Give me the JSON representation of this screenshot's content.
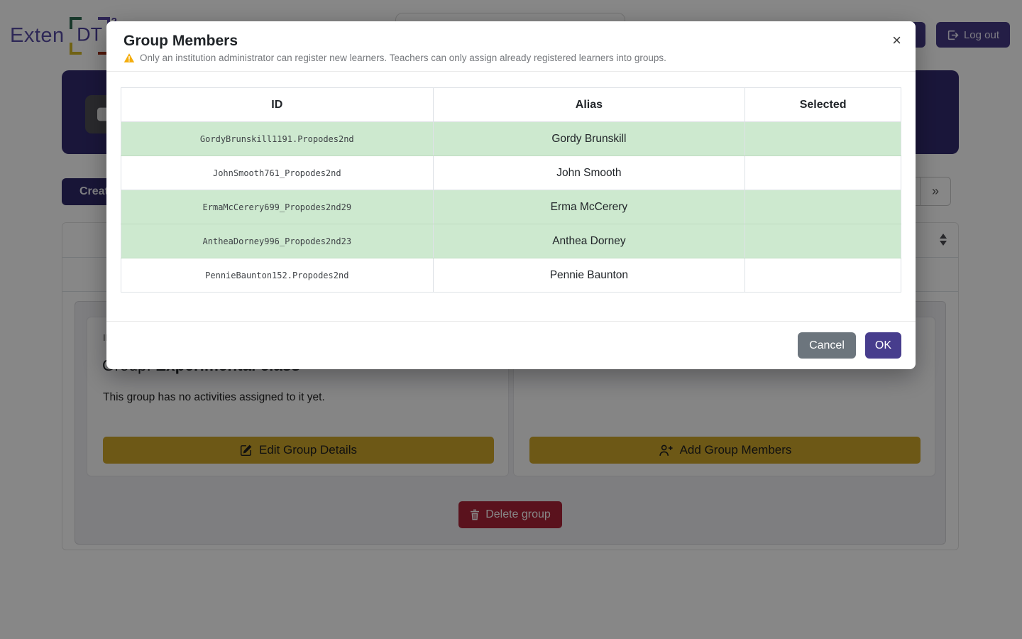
{
  "brand": {
    "exten": "Exten",
    "dt": "DT",
    "sup": "2"
  },
  "navbar": {
    "logout": "Log out"
  },
  "content": {
    "create_button": "Creat",
    "pagination": {
      "next": "›",
      "last": "»"
    },
    "detail": {
      "id_label": "ID",
      "group_label": "Group:",
      "group_name": "Experimental class",
      "empty_text": "This group has no activities assigned to it yet.",
      "edit_button": "Edit Group Details",
      "add_button": "Add Group Members",
      "delete_button": "Delete group"
    }
  },
  "modal": {
    "title": "Group Members",
    "warning": "Only an institution administrator can register new learners. Teachers can only assign already registered learners into groups.",
    "close": "×",
    "cancel": "Cancel",
    "ok": "OK",
    "table": {
      "columns": [
        "ID",
        "Alias",
        "Selected"
      ],
      "rows": [
        {
          "id": "GordyBrunskill1191.Propodes2nd",
          "alias": "Gordy Brunskill",
          "selected": true
        },
        {
          "id": "JohnSmooth761_Propodes2nd",
          "alias": "John Smooth",
          "selected": false
        },
        {
          "id": "ErmaMcCerery699_Propodes2nd29",
          "alias": "Erma McCerery",
          "selected": true
        },
        {
          "id": "AntheaDorney996_Propodes2nd23",
          "alias": "Anthea Dorney",
          "selected": true
        },
        {
          "id": "PennieBaunton152.Propodes2nd",
          "alias": "Pennie Baunton",
          "selected": false
        }
      ]
    }
  },
  "colors": {
    "primary_purple": "#473d8d",
    "banner_navy": "#312a6e",
    "gold": "#cfa62b",
    "danger_red": "#ab2338",
    "selected_row_green": "#cde9cf",
    "warning_icon": "#f4ad0d"
  }
}
